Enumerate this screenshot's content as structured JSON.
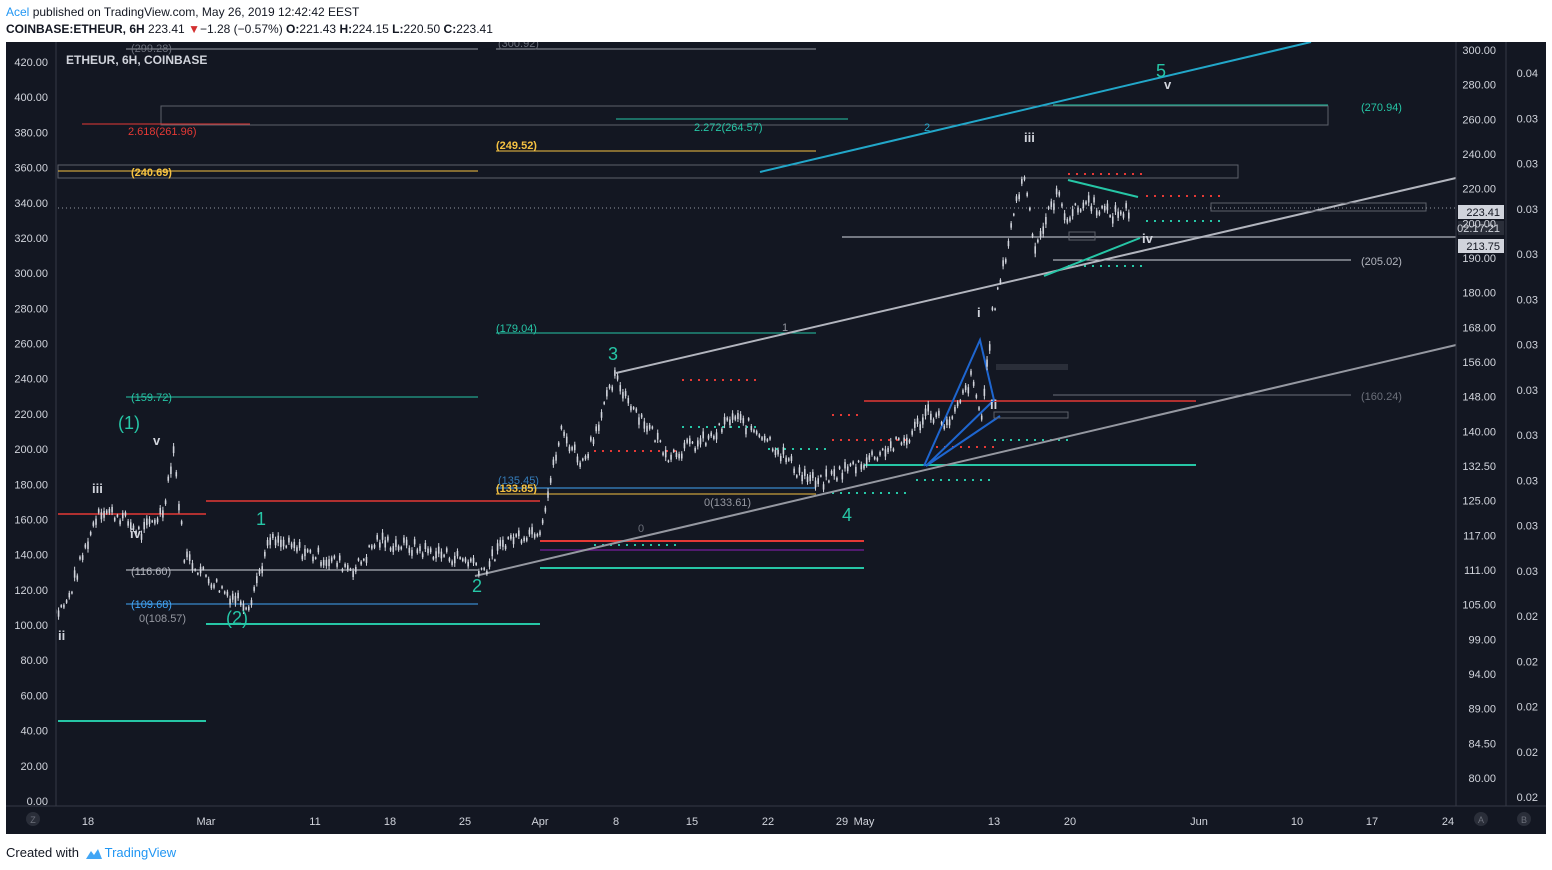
{
  "header": {
    "author": "Acel",
    "published_text": "published on TradingView.com, May 26, 2019 12:42:42 EEST",
    "symbol": "COINBASE:ETHEUR, 6H",
    "last": "223.41",
    "change_arrow": "▼",
    "change": "−1.28 (−0.57%)",
    "o_label": "O:",
    "o_val": "221.43",
    "h_label": "H:",
    "h_val": "224.15",
    "l_label": "L:",
    "l_val": "220.50",
    "c_label": "C:",
    "c_val": "223.41"
  },
  "footer": {
    "created_with": "Created with",
    "brand": "TradingView",
    "brand_icon": "tradingview-cloud-icon"
  },
  "colors": {
    "background": "#131722",
    "candle": "#d1d4dc",
    "teal": "#26c6a6",
    "red": "#e53935",
    "yellow": "#f5c242",
    "cyan": "#22a7c9",
    "blue": "#2962ff",
    "gray": "#9598a1"
  },
  "chart_data": {
    "type": "line",
    "title": "ETHEUR, 6H, COINBASE",
    "left_axis_ticks": [
      "420.00",
      "400.00",
      "380.00",
      "360.00",
      "340.00",
      "320.00",
      "300.00",
      "280.00",
      "260.00",
      "240.00",
      "220.00",
      "200.00",
      "180.00",
      "160.00",
      "140.00",
      "120.00",
      "100.00",
      "80.00",
      "60.00",
      "40.00",
      "20.00",
      "0.00"
    ],
    "right_axis_ticks": [
      "300.00",
      "280.00",
      "260.00",
      "240.00",
      "220.00",
      "200.00",
      "190.00",
      "180.00",
      "168.00",
      "156.00",
      "148.00",
      "140.00",
      "132.50",
      "125.00",
      "117.00",
      "111.00",
      "105.00",
      "99.00",
      "94.00",
      "89.00",
      "84.50",
      "80.00"
    ],
    "far_right_axis_ticks": [
      "0.04",
      "0.03",
      "0.03",
      "0.03",
      "0.03",
      "0.03",
      "0.03",
      "0.03",
      "0.03",
      "0.03",
      "0.03",
      "0.03",
      "0.02",
      "0.02",
      "0.02",
      "0.02",
      "0.02"
    ],
    "x_ticks": [
      "18",
      "Mar",
      "11",
      "18",
      "25",
      "Apr",
      "8",
      "15",
      "22",
      "29",
      "May",
      "13",
      "20",
      "Jun",
      "10",
      "17",
      "24"
    ],
    "price_series": [
      [
        "Feb 14",
        102
      ],
      [
        "Feb 16",
        112
      ],
      [
        "Feb 18",
        148
      ],
      [
        "Feb 19",
        166
      ],
      [
        "Feb 21",
        162
      ],
      [
        "Feb 23",
        152
      ],
      [
        "Feb 25",
        165
      ],
      [
        "Feb 26",
        200
      ],
      [
        "Feb 27",
        140
      ],
      [
        "Mar 1",
        128
      ],
      [
        "Mar 3",
        118
      ],
      [
        "Mar 5",
        112
      ],
      [
        "Mar 7",
        148
      ],
      [
        "Mar 11",
        140
      ],
      [
        "Mar 15",
        132
      ],
      [
        "Mar 17",
        148
      ],
      [
        "Mar 21",
        143
      ],
      [
        "Mar 26",
        136
      ],
      [
        "Mar 27",
        131
      ],
      [
        "Mar 29",
        148
      ],
      [
        "Apr 1",
        155
      ],
      [
        "Apr 3",
        210
      ],
      [
        "Apr 5",
        192
      ],
      [
        "Apr 8",
        240
      ],
      [
        "Apr 10",
        222
      ],
      [
        "Apr 13",
        197
      ],
      [
        "Apr 17",
        206
      ],
      [
        "Apr 19",
        218
      ],
      [
        "Apr 22",
        208
      ],
      [
        "Apr 25",
        188
      ],
      [
        "Apr 27",
        180
      ],
      [
        "Apr 29",
        187
      ],
      [
        "May 1",
        193
      ],
      [
        "May 3",
        200
      ],
      [
        "May 5",
        205
      ],
      [
        "May 7",
        222
      ],
      [
        "May 9",
        213
      ],
      [
        "May 11",
        240
      ],
      [
        "May 12",
        218
      ],
      [
        "May 13",
        276
      ],
      [
        "May 14",
        302
      ],
      [
        "May 15",
        335
      ],
      [
        "May 16",
        356
      ],
      [
        "May 17",
        315
      ],
      [
        "May 18",
        330
      ],
      [
        "May 19",
        345
      ],
      [
        "May 20",
        332
      ],
      [
        "May 22",
        341
      ],
      [
        "May 24",
        333
      ],
      [
        "May 26",
        336
      ]
    ],
    "price_labels_boxed": {
      "last": "223.41",
      "countdown": "02:17:21",
      "level": "213.75"
    },
    "fib_labels": [
      {
        "text": "(299.28)"
      },
      {
        "text": "(300.92)"
      },
      {
        "text": "2.618(261.96)"
      },
      {
        "text": "2.272(264.57)"
      },
      {
        "text": "(249.52)"
      },
      {
        "text": "(240.69)"
      },
      {
        "text": "(270.94)"
      },
      {
        "text": "(205.02)"
      },
      {
        "text": "(179.04)"
      },
      {
        "text": "(159.72)"
      },
      {
        "text": "(160.24)"
      },
      {
        "text": "(133.85)"
      },
      {
        "text": "(135.45)"
      },
      {
        "text": "0(133.61)"
      },
      {
        "text": "(116.60)"
      },
      {
        "text": "(109.68)"
      },
      {
        "text": "0(108.57)"
      },
      {
        "text": "0"
      },
      {
        "text": "1"
      },
      {
        "text": "2"
      }
    ],
    "wave_labels": [
      "(1)",
      "(2)",
      "1",
      "2",
      "3",
      "4",
      "5",
      "i",
      "ii",
      "iii",
      "iv",
      "v"
    ],
    "ylim_left": [
      0,
      430
    ],
    "grid": false
  }
}
